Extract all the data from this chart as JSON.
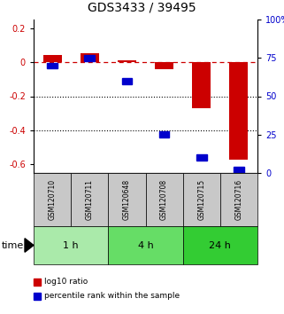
{
  "title": "GDS3433 / 39495",
  "samples": [
    "GSM120710",
    "GSM120711",
    "GSM120648",
    "GSM120708",
    "GSM120715",
    "GSM120716"
  ],
  "log10_ratio": [
    0.04,
    0.05,
    0.01,
    -0.04,
    -0.27,
    -0.57
  ],
  "percentile_rank": [
    70,
    75,
    60,
    25,
    10,
    2
  ],
  "groups": [
    {
      "label": "1 h",
      "indices": [
        0,
        1
      ],
      "color": "#aaeaaa"
    },
    {
      "label": "4 h",
      "indices": [
        2,
        3
      ],
      "color": "#66dd66"
    },
    {
      "label": "24 h",
      "indices": [
        4,
        5
      ],
      "color": "#33cc33"
    }
  ],
  "bar_color": "#cc0000",
  "scatter_color": "#0000cc",
  "bar_width": 0.5,
  "left_ylim": [
    -0.65,
    0.25
  ],
  "right_ylim": [
    0,
    100
  ],
  "left_yticks": [
    0.2,
    0.0,
    -0.2,
    -0.4,
    -0.6
  ],
  "right_yticks": [
    100,
    75,
    50,
    25,
    0
  ],
  "dotted_lines": [
    -0.2,
    -0.4
  ],
  "legend_red": "log10 ratio",
  "legend_blue": "percentile rank within the sample",
  "time_label": "time",
  "background_color": "#ffffff",
  "plot_bg": "#ffffff",
  "header_bg": "#c8c8c8",
  "title_fontsize": 10,
  "tick_fontsize": 7,
  "sample_fontsize": 5.5,
  "group_fontsize": 8,
  "legend_fontsize": 6.5,
  "time_fontsize": 8
}
